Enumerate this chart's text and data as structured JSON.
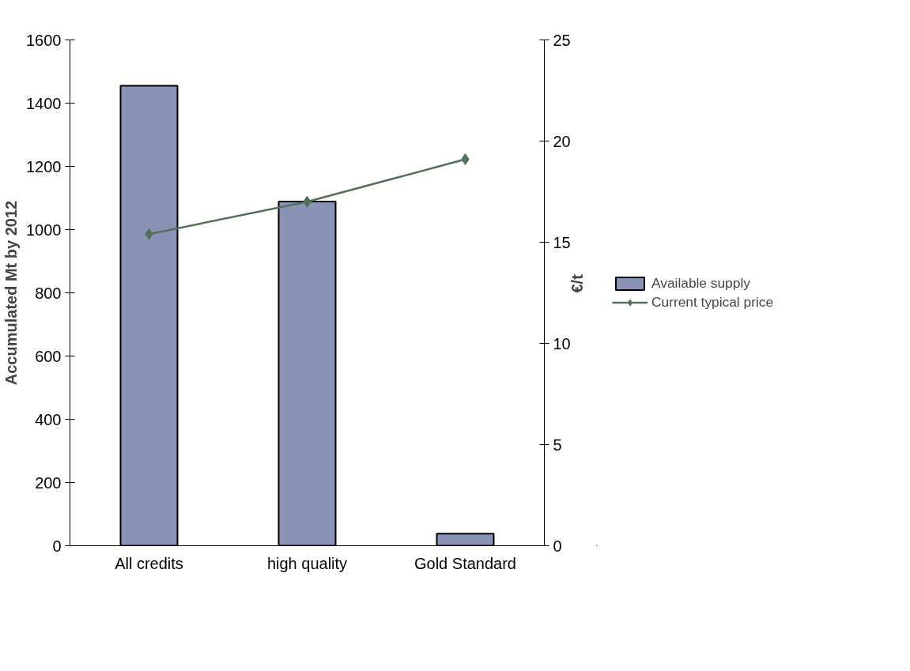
{
  "chart_data": {
    "type": "bar",
    "categories": [
      "All credits",
      "high quality",
      "Gold Standard"
    ],
    "ylabel": "Accumulated Mt by 2012",
    "y2label": "€/t",
    "ylim": [
      0,
      1600
    ],
    "yticks": [
      0,
      200,
      400,
      600,
      800,
      1000,
      1200,
      1400,
      1600
    ],
    "y2lim": [
      0,
      25
    ],
    "y2ticks": [
      0,
      5,
      10,
      15,
      20,
      25
    ],
    "legend": "right",
    "grid": false,
    "series": [
      {
        "name": "Available supply",
        "color": "#8a93b6",
        "values": [
          1455,
          1089,
          38
        ]
      },
      {
        "name": "Current typical price",
        "type": "line",
        "axis": "y2",
        "color": "#52705a",
        "marker": "diamond",
        "values": [
          15.4,
          17.0,
          19.1
        ]
      }
    ]
  }
}
